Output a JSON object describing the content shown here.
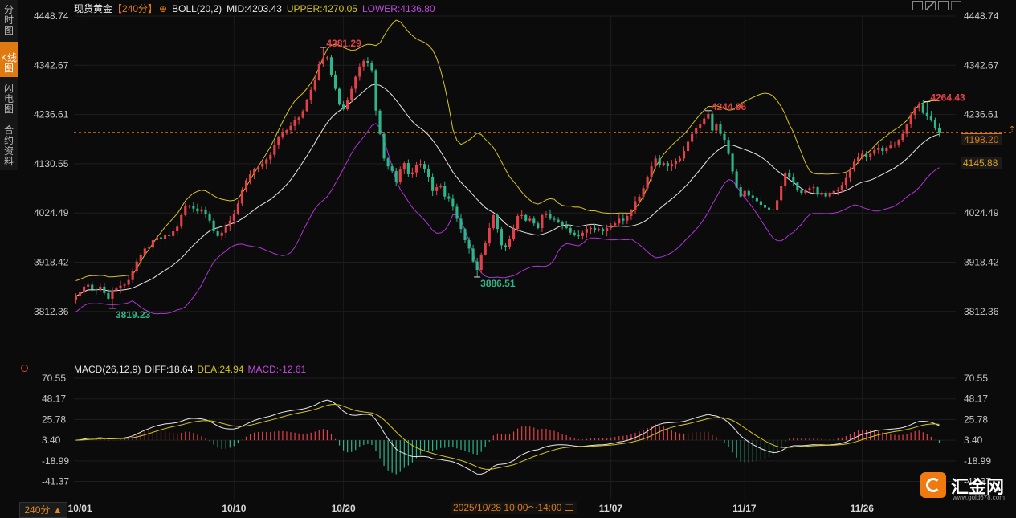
{
  "sidebar": {
    "tabs": [
      {
        "label": "分时图",
        "active": false
      },
      {
        "label": "K线图",
        "active": true
      },
      {
        "label": "闪电图",
        "active": false
      },
      {
        "label": "合约资料",
        "active": false
      }
    ]
  },
  "header": {
    "instrument": "现货黄金",
    "period": "【240分】",
    "boll_label": "BOLL(20,2)",
    "mid_text": "MID:4203.43",
    "upper_text": "UPPER:4270.05",
    "lower_text": "LOWER:4136.80"
  },
  "macd_header": {
    "macd_label": "MACD(26,12,9)",
    "diff_text": "DIFF:18.64",
    "dea_text": "DEA:24.94",
    "macd_text": "MACD:-12.61"
  },
  "colors": {
    "up": "#e2414a",
    "down": "#2fb58a",
    "mid": "#e8e8e8",
    "upper": "#d4c51c",
    "lower": "#b033d8",
    "accent": "#e07a10"
  },
  "price_tags": {
    "current": "4198.20",
    "lower": "4145.88"
  },
  "footer": {
    "period_button": "240分 ▲",
    "crosshair_time": "2025/10/28 10:00～14:00 二"
  },
  "logo": {
    "name": "汇金网",
    "site": "www.gold678.com"
  },
  "chart_data": [
    {
      "type": "candlestick",
      "title": "现货黄金 240分",
      "y_ticks": [
        "4448.74",
        "4342.67",
        "4236.61",
        "4130.55",
        "4024.49",
        "3918.42",
        "3812.36"
      ],
      "ylim": [
        3706.3,
        4448.74
      ],
      "x_ticks": [
        "10/01",
        "10/10",
        "10/20",
        "11/07",
        "11/17",
        "11/26"
      ],
      "current_price": 4198.2,
      "annotations": [
        {
          "text": "4381.29",
          "value": 4381.29,
          "kind": "high"
        },
        {
          "text": "3819.23",
          "value": 3819.23,
          "kind": "low"
        },
        {
          "text": "3886.51",
          "value": 3886.51,
          "kind": "low"
        },
        {
          "text": "4244.96",
          "value": 4244.96,
          "kind": "high"
        },
        {
          "text": "4264.43",
          "value": 4264.43,
          "kind": "high"
        }
      ],
      "close_series": [
        3845,
        3855,
        3866,
        3870,
        3860,
        3858,
        3866,
        3852,
        3840,
        3858,
        3862,
        3868,
        3870,
        3880,
        3900,
        3920,
        3935,
        3948,
        3950,
        3966,
        3972,
        3968,
        3978,
        3975,
        3985,
        3995,
        4020,
        4040,
        4040,
        4034,
        4028,
        4032,
        4022,
        4008,
        3985,
        3975,
        3982,
        3995,
        4008,
        4022,
        4045,
        4075,
        4095,
        4108,
        4118,
        4124,
        4131,
        4140,
        4150,
        4172,
        4188,
        4196,
        4203,
        4212,
        4224,
        4230,
        4244,
        4268,
        4290,
        4312,
        4345,
        4358,
        4360,
        4322,
        4292,
        4258,
        4248,
        4268,
        4292,
        4318,
        4340,
        4352,
        4348,
        4332,
        4245,
        4195,
        4142,
        4125,
        4115,
        4092,
        4118,
        4132,
        4108,
        4112,
        4128,
        4130,
        4120,
        4102,
        4072,
        4080,
        4082,
        4060,
        4055,
        4038,
        4012,
        3990,
        3966,
        3948,
        3920,
        3902,
        3935,
        3960,
        3992,
        4020,
        3990,
        3955,
        3952,
        3968,
        3990,
        4018,
        4020,
        4008,
        4012,
        4002,
        3992,
        4020,
        4022,
        4012,
        4010,
        4005,
        3998,
        3992,
        3982,
        3978,
        3975,
        3982,
        3990,
        3992,
        3988,
        3990,
        3985,
        3992,
        3998,
        4002,
        4012,
        4008,
        4018,
        4030,
        4050,
        4060,
        4078,
        4102,
        4125,
        4142,
        4128,
        4132,
        4125,
        4130,
        4136,
        4142,
        4158,
        4178,
        4195,
        4208,
        4215,
        4228,
        4238,
        4202,
        4215,
        4195,
        4182,
        4152,
        4114,
        4080,
        4060,
        4072,
        4062,
        4058,
        4050,
        4042,
        4036,
        4032,
        4030,
        4052,
        4082,
        4110,
        4102,
        4090,
        4074,
        4068,
        4074,
        4078,
        4080,
        4064,
        4068,
        4060,
        4068,
        4072,
        4075,
        4085,
        4100,
        4118,
        4135,
        4146,
        4152,
        4145,
        4152,
        4160,
        4165,
        4158,
        4165,
        4170,
        4172,
        4182,
        4195,
        4215,
        4236,
        4252,
        4258,
        4240,
        4234,
        4225,
        4208,
        4198
      ]
    },
    {
      "type": "bar+line",
      "title": "MACD(26,12,9)",
      "y_ticks": [
        "70.55",
        "48.17",
        "25.78",
        "3.40",
        "-18.99",
        "-41.37"
      ],
      "ylim": [
        -52.56,
        70.55
      ],
      "series": [
        {
          "name": "DIFF",
          "value": 18.64
        },
        {
          "name": "DEA",
          "value": 24.94
        },
        {
          "name": "MACD",
          "value": -12.61
        }
      ]
    }
  ]
}
